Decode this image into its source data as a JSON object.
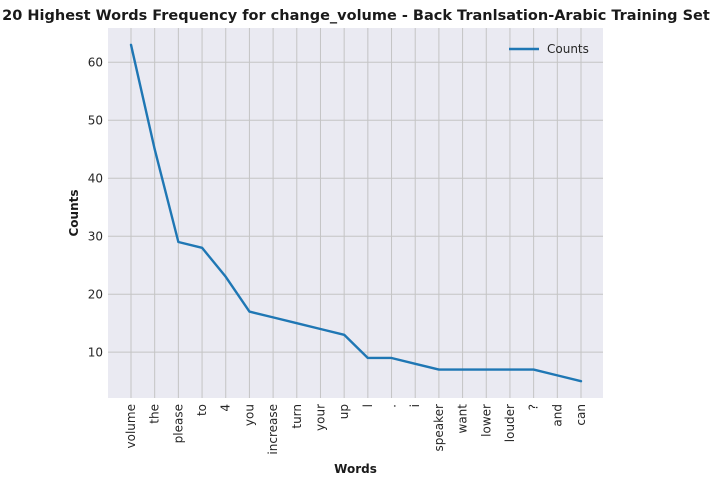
{
  "chart_data": {
    "type": "line",
    "title": "20 Highest Words Frequency for change_volume - Back Tranlsation-Arabic Training Set",
    "xlabel": "Words",
    "ylabel": "Counts",
    "categories": [
      "volume",
      "the",
      "please",
      "to",
      "4",
      "you",
      "increase",
      "turn",
      "your",
      "up",
      "l",
      ".",
      "i",
      "speaker",
      "want",
      "lower",
      "louder",
      "?",
      "and",
      "can"
    ],
    "series": [
      {
        "name": "Counts",
        "values": [
          63,
          45,
          29,
          28,
          23,
          17,
          16,
          15,
          14,
          13,
          9,
          9,
          8,
          7,
          7,
          7,
          7,
          7,
          6,
          5
        ]
      }
    ],
    "yticks": [
      10,
      20,
      30,
      40,
      50,
      60
    ],
    "ylim": [
      2.1,
      65.9
    ],
    "grid": true,
    "legend": "top-right",
    "colors": {
      "line": "#1f77b4",
      "plot_bg": "#eaeaf2",
      "grid": "#c4c4c4",
      "text": "#262626"
    }
  }
}
